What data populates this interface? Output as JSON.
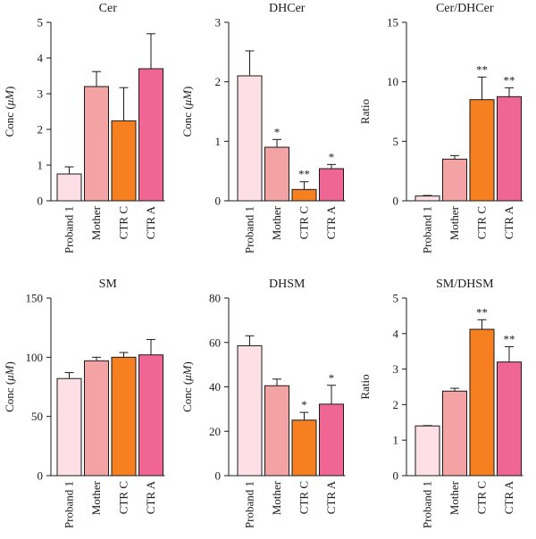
{
  "chart_data": [
    {
      "type": "bar",
      "title": "Cer",
      "ylabel": "Conc (μM)",
      "ylim": [
        0,
        5
      ],
      "yticks": [
        0,
        1,
        2,
        3,
        4,
        5
      ],
      "categories": [
        "Proband 1",
        "Mother",
        "CTR C",
        "CTR A"
      ],
      "values": [
        0.75,
        3.2,
        2.24,
        3.7
      ],
      "errors": [
        0.2,
        0.42,
        0.93,
        0.98
      ],
      "significance": [
        "",
        "",
        "",
        ""
      ]
    },
    {
      "type": "bar",
      "title": "DHCer",
      "ylabel": "Conc (μM)",
      "ylim": [
        0,
        3
      ],
      "yticks": [
        0,
        1,
        2,
        3
      ],
      "categories": [
        "Proband 1",
        "Mother",
        "CTR C",
        "CTR A"
      ],
      "values": [
        2.1,
        0.9,
        0.19,
        0.54
      ],
      "errors": [
        0.42,
        0.13,
        0.13,
        0.07
      ],
      "significance": [
        "",
        "*",
        "**",
        "*"
      ]
    },
    {
      "type": "bar",
      "title": "Cer/DHCer",
      "ylabel": "Ratio",
      "ylim": [
        0,
        15
      ],
      "yticks": [
        0,
        5,
        10,
        15
      ],
      "categories": [
        "Proband 1",
        "Mother",
        "CTR C",
        "CTR A"
      ],
      "values": [
        0.4,
        3.5,
        8.5,
        8.75
      ],
      "errors": [
        0.05,
        0.3,
        1.9,
        0.75
      ],
      "significance": [
        "",
        "",
        "**",
        "**"
      ]
    },
    {
      "type": "bar",
      "title": "SM",
      "ylabel": "Conc (μM)",
      "ylim": [
        0,
        150
      ],
      "yticks": [
        0,
        50,
        100,
        150
      ],
      "categories": [
        "Proband 1",
        "Mother",
        "CTR C",
        "CTR A"
      ],
      "values": [
        82,
        97,
        100,
        102
      ],
      "errors": [
        5,
        3,
        4,
        13
      ],
      "significance": [
        "",
        "",
        "",
        ""
      ]
    },
    {
      "type": "bar",
      "title": "DHSM",
      "ylabel": "Conc (μM)",
      "ylim": [
        0,
        80
      ],
      "yticks": [
        0,
        20,
        40,
        60,
        80
      ],
      "categories": [
        "Proband 1",
        "Mother",
        "CTR C",
        "CTR A"
      ],
      "values": [
        58.5,
        40.5,
        25,
        32.2
      ],
      "errors": [
        4.5,
        3,
        3.5,
        8.5
      ],
      "significance": [
        "",
        "",
        "*",
        "*"
      ]
    },
    {
      "type": "bar",
      "title": "SM/DHSM",
      "ylabel": "Ratio",
      "ylim": [
        0,
        5
      ],
      "yticks": [
        0,
        1,
        2,
        3,
        4,
        5
      ],
      "categories": [
        "Proband 1",
        "Mother",
        "CTR C",
        "CTR A"
      ],
      "values": [
        1.4,
        2.38,
        4.12,
        3.2
      ],
      "errors": [
        0.01,
        0.08,
        0.27,
        0.43
      ],
      "significance": [
        "",
        "",
        "**",
        "**"
      ]
    }
  ],
  "colors": {
    "Proband 1": "#fce0e5",
    "Mother": "#f4a3a5",
    "CTR C": "#f67f20",
    "CTR A": "#ef6694"
  }
}
